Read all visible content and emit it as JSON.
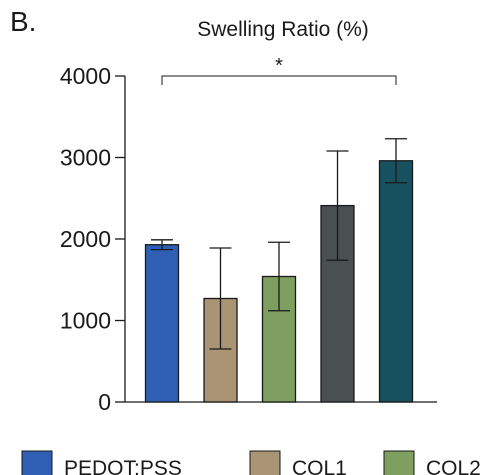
{
  "panel_label": "B.",
  "chart_data": {
    "type": "bar",
    "title": "Swelling Ratio (%)",
    "xlabel": "",
    "ylabel": "",
    "ylim": [
      0,
      4000
    ],
    "yticks": [
      0,
      1000,
      2000,
      3000,
      4000
    ],
    "grid": false,
    "categories": [
      "PEDOT:PSS",
      "COL1",
      "COL2",
      "",
      ""
    ],
    "values": [
      1930,
      1270,
      1540,
      2410,
      2960
    ],
    "errors": [
      60,
      620,
      420,
      670,
      270
    ],
    "colors": [
      "#2e5fb5",
      "#a99473",
      "#7e9f5f",
      "#4a4f52",
      "#17505e"
    ],
    "significance": {
      "from": 0,
      "to": 4,
      "label": "*",
      "level": 4000
    },
    "legend": [
      {
        "label": "PEDOT:PSS",
        "color": "#2e5fb5"
      },
      {
        "label": "COL1",
        "color": "#a99473"
      },
      {
        "label": "COL2",
        "color": "#7e9f5f"
      }
    ],
    "legend_position": "bottom"
  }
}
